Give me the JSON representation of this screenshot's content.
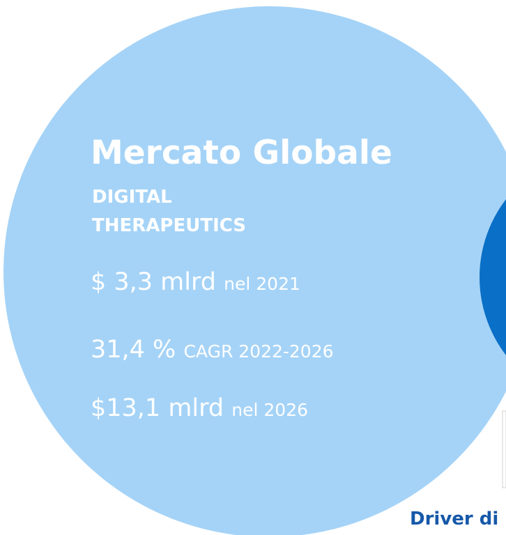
{
  "title": "Mercato Globale",
  "subtitle": "DIGITAL THERAPEUTICS",
  "stats": [
    {
      "value": "$ 3,3 mlrd",
      "note": "nel 2021"
    },
    {
      "value": "31,4 %",
      "note": "CAGR 2022-2026"
    },
    {
      "value": "$13,1 mlrd",
      "note": "nel 2026"
    }
  ],
  "footer": "Driver di"
}
